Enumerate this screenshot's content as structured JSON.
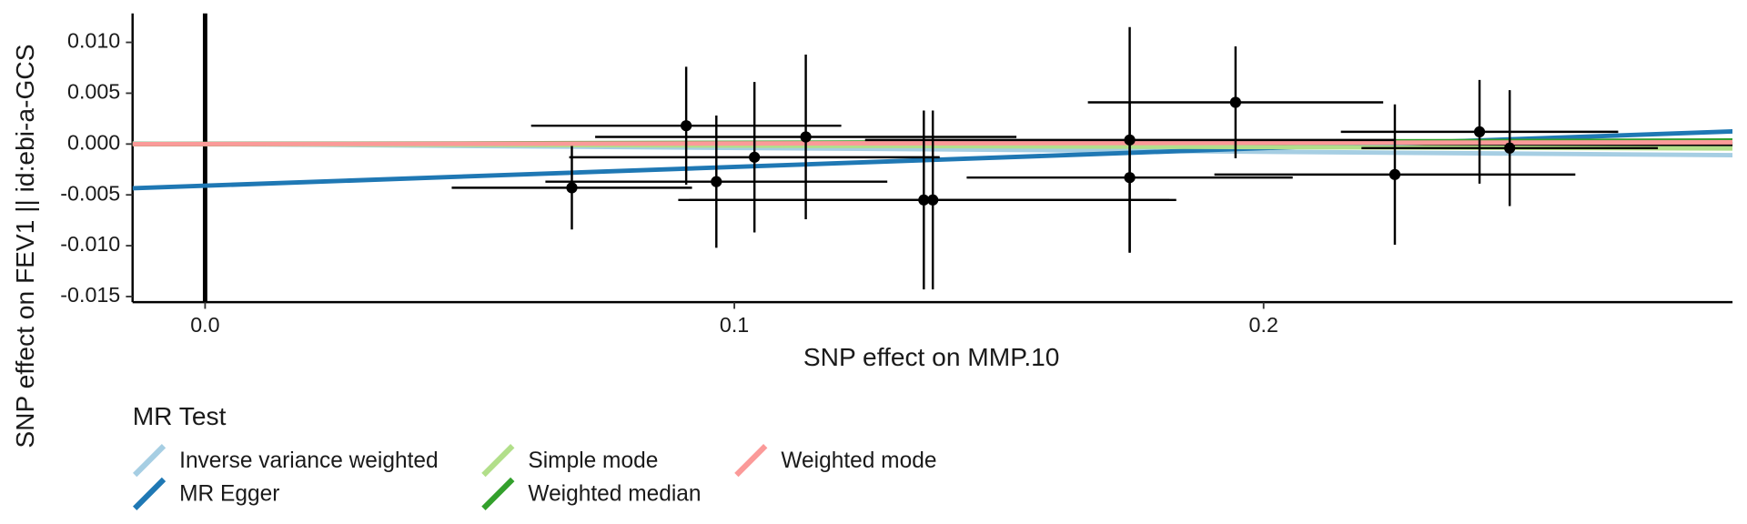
{
  "chart_data": {
    "type": "scatter",
    "x_label": "SNP effect on MMP.10",
    "y_label": "SNP effect on FEV1 || id:ebi-a-GCS",
    "xlim": [
      -0.0137,
      0.2886
    ],
    "ylim": [
      -0.01555,
      0.01285
    ],
    "xticks": [
      {
        "value": 0,
        "label": "0.0"
      },
      {
        "value": 0.1,
        "label": "0.1"
      },
      {
        "value": 0.2,
        "label": "0.2"
      }
    ],
    "yticks": [
      {
        "value": 0.01,
        "label": "0.010"
      },
      {
        "value": 0.005,
        "label": "0.005"
      },
      {
        "value": 0,
        "label": "0.000"
      },
      {
        "value": -0.005,
        "label": "-0.005"
      },
      {
        "value": -0.01,
        "label": "-0.010"
      },
      {
        "value": -0.015,
        "label": "-0.015"
      }
    ],
    "points": {
      "color": "#000000",
      "x": [
        0.0693,
        0.0909,
        0.0966,
        0.1038,
        0.1135,
        0.1358,
        0.1375,
        0.1747,
        0.1747,
        0.1947,
        0.2248,
        0.2408,
        0.2465
      ],
      "values": [
        -0.0043,
        0.0018,
        -0.0037,
        -0.0013,
        0.0007,
        -0.0055,
        -0.0055,
        0.0004,
        -0.0033,
        0.0041,
        -0.003,
        0.0012,
        -0.0004
      ],
      "x_err": [
        0.0227,
        0.0293,
        0.0323,
        0.035,
        0.0398,
        0.0464,
        0.046,
        0.05,
        0.0308,
        0.0279,
        0.0341,
        0.0262,
        0.028
      ],
      "y_err": [
        0.0041,
        0.0058,
        0.0065,
        0.0074,
        0.0081,
        0.0088,
        0.0088,
        0.0111,
        0.0073,
        0.0055,
        0.0069,
        0.0051,
        0.0057
      ]
    },
    "legend_title": "MR Test",
    "series": [
      {
        "name": "Inverse variance weighted",
        "color": "#a6cee3",
        "intercept": 0,
        "slope": -0.0038
      },
      {
        "name": "MR Egger",
        "color": "#1f78b4",
        "intercept": -0.0041,
        "slope": 0.0185
      },
      {
        "name": "Simple mode",
        "color": "#b2df8a",
        "intercept": 0,
        "slope": -0.0015
      },
      {
        "name": "Weighted median",
        "color": "#33a02c",
        "intercept": 0,
        "slope": 0.0012
      },
      {
        "name": "Weighted mode",
        "color": "#fb9a99",
        "intercept": 0,
        "slope": 0.0006
      }
    ]
  }
}
